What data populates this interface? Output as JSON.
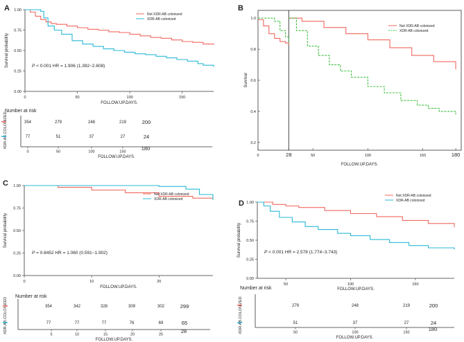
{
  "colors": {
    "not_xdr": "#f0675e",
    "xdr_solid": "#29b9d6",
    "xdr_dashed": "#3fbf3f"
  },
  "chart_data": [
    {
      "panel": "A",
      "type": "line",
      "title": "",
      "xlabel": "FOLLOW.UP.DAYS.",
      "ylabel": "Survival probability",
      "xlim": [
        0,
        180
      ],
      "ylim": [
        0,
        1
      ],
      "xticks": [
        "0",
        "50",
        "100",
        "150"
      ],
      "yticks": [
        "0.00",
        "0.25",
        "0.50",
        "0.75",
        "1.00"
      ],
      "legend": [
        "Not XDR-AB colonized",
        "XDR-AB colonized"
      ],
      "annotation": {
        "p": "P",
        "text": " < 0.001  HR = 1.906 (1.392~2.608)"
      },
      "series": [
        {
          "name": "Not XDR-AB colonized",
          "x": [
            0,
            5,
            10,
            15,
            20,
            25,
            30,
            40,
            50,
            60,
            70,
            80,
            90,
            100,
            110,
            120,
            130,
            140,
            150,
            160,
            170,
            180
          ],
          "y": [
            1.0,
            0.97,
            0.92,
            0.88,
            0.85,
            0.83,
            0.82,
            0.8,
            0.78,
            0.76,
            0.75,
            0.73,
            0.72,
            0.7,
            0.68,
            0.66,
            0.65,
            0.63,
            0.61,
            0.6,
            0.58,
            0.57
          ]
        },
        {
          "name": "XDR-AB colonized",
          "x": [
            0,
            10,
            15,
            18,
            22,
            28,
            35,
            45,
            55,
            65,
            75,
            85,
            95,
            105,
            115,
            125,
            135,
            145,
            155,
            165,
            170,
            180
          ],
          "y": [
            1.0,
            1.0,
            0.98,
            0.9,
            0.8,
            0.75,
            0.7,
            0.62,
            0.58,
            0.55,
            0.52,
            0.5,
            0.48,
            0.46,
            0.45,
            0.43,
            0.41,
            0.39,
            0.37,
            0.34,
            0.32,
            0.3
          ]
        }
      ],
      "risk_table": {
        "title": "Number at risk",
        "ylabel": "XDR.AB.COLONIZED",
        "xlabel": "FOLLOW.UP.DAYS.",
        "xticks": [
          "0",
          "50",
          "100",
          "150",
          "180"
        ],
        "rows": [
          {
            "name": "Not XDR-AB colonized",
            "values": [
              "354",
              "279",
              "248",
              "219",
              "200"
            ]
          },
          {
            "name": "XDR-AB colonized",
            "values": [
              "77",
              "51",
              "37",
              "27",
              "24"
            ]
          }
        ]
      }
    },
    {
      "panel": "B",
      "type": "line",
      "title": "",
      "xlabel": "FOLLOW.UP.DAYS.",
      "ylabel": "Survival",
      "xlim": [
        0,
        185
      ],
      "ylim": [
        0.15,
        1.05
      ],
      "xticks": [
        "0",
        "28",
        "50",
        "100",
        "150",
        "180"
      ],
      "yticks": [
        "0.2",
        "0.4",
        "0.6",
        "0.8",
        "1.0"
      ],
      "landmark_day": 28,
      "legend": [
        "Not XDR-AB colonized",
        "XDR-AB colonized"
      ],
      "series": [
        {
          "name": "Not XDR-AB colonized (before day 28)",
          "x": [
            0,
            5,
            10,
            15,
            20,
            25,
            28
          ],
          "y": [
            0.99,
            0.95,
            0.9,
            0.87,
            0.85,
            0.84,
            0.83
          ]
        },
        {
          "name": "XDR-AB colonized (before day 28)",
          "x": [
            0,
            10,
            15,
            20,
            25,
            28
          ],
          "y": [
            1.0,
            1.0,
            0.98,
            0.92,
            0.88,
            0.84
          ]
        },
        {
          "name": "Not XDR-AB colonized",
          "x": [
            28,
            40,
            60,
            80,
            100,
            120,
            140,
            160,
            180
          ],
          "y": [
            1.0,
            0.98,
            0.94,
            0.9,
            0.86,
            0.81,
            0.76,
            0.72,
            0.67
          ]
        },
        {
          "name": "XDR-AB colonized",
          "x": [
            28,
            35,
            45,
            55,
            65,
            75,
            85,
            100,
            115,
            130,
            145,
            155,
            165,
            180
          ],
          "y": [
            1.0,
            0.92,
            0.82,
            0.76,
            0.7,
            0.66,
            0.62,
            0.56,
            0.52,
            0.47,
            0.44,
            0.42,
            0.4,
            0.38
          ]
        }
      ]
    },
    {
      "panel": "C",
      "type": "line",
      "title": "",
      "xlabel": "FOLLOW.UP.DAYS.",
      "ylabel": "Survival probability",
      "xlim": [
        0,
        28
      ],
      "ylim": [
        0,
        1
      ],
      "xticks": [
        "0",
        "10",
        "20"
      ],
      "yticks": [
        "0.00",
        "0.25",
        "0.50",
        "0.75",
        "1.00"
      ],
      "legend": [
        "Not XDR-AB colonized",
        "XDR-AB colonized"
      ],
      "annotation": {
        "p": "P",
        "text": " = 0.8452     HR = 1.060 (0.591~1.902)"
      },
      "series": [
        {
          "name": "Not XDR-AB colonized",
          "x": [
            0,
            5,
            10,
            15,
            20,
            25,
            28
          ],
          "y": [
            1.0,
            0.98,
            0.95,
            0.92,
            0.88,
            0.86,
            0.84
          ]
        },
        {
          "name": "XDR-AB colonized",
          "x": [
            0,
            5,
            10,
            15,
            20,
            24,
            26,
            28
          ],
          "y": [
            1.0,
            1.0,
            1.0,
            1.0,
            0.99,
            0.96,
            0.9,
            0.84
          ]
        }
      ],
      "risk_table": {
        "title": "Number at risk",
        "ylabel": "XDR.AB.COLONIZED",
        "xlabel": "FOLLOW.UP.DAYS.",
        "xticks": [
          "5",
          "10",
          "15",
          "20",
          "25",
          "28"
        ],
        "rows": [
          {
            "name": "Not XDR-AB colonized",
            "values": [
              "354",
              "342",
              "328",
              "309",
              "302",
              "299"
            ]
          },
          {
            "name": "XDR-AB colonized",
            "values": [
              "77",
              "77",
              "77",
              "76",
              "69",
              "65"
            ]
          }
        ]
      }
    },
    {
      "panel": "D",
      "type": "line",
      "title": "",
      "xlabel": "FOLLOW.UP.DAYS.",
      "ylabel": "Survival probability",
      "xlim": [
        28,
        180
      ],
      "ylim": [
        0,
        1
      ],
      "xticks": [
        "50",
        "100",
        "150"
      ],
      "yticks": [
        "0.00",
        "0.25",
        "0.50",
        "0.75",
        "1.00"
      ],
      "legend": [
        "Not XDR-AB colonized",
        "XDR-AB colonized"
      ],
      "annotation": {
        "p": "P",
        "text": " < 0.001    HR = 2.578 (1.774~3.743)"
      },
      "series": [
        {
          "name": "Not XDR-AB colonized",
          "x": [
            28,
            40,
            50,
            60,
            80,
            100,
            120,
            140,
            160,
            180
          ],
          "y": [
            1.0,
            0.97,
            0.95,
            0.93,
            0.89,
            0.85,
            0.81,
            0.76,
            0.72,
            0.67
          ]
        },
        {
          "name": "XDR-AB colonized",
          "x": [
            28,
            33,
            38,
            45,
            55,
            65,
            75,
            90,
            100,
            115,
            130,
            145,
            160,
            180
          ],
          "y": [
            1.0,
            0.95,
            0.88,
            0.8,
            0.74,
            0.68,
            0.64,
            0.59,
            0.56,
            0.51,
            0.47,
            0.43,
            0.4,
            0.38
          ]
        }
      ],
      "risk_table": {
        "title": "Number at risk",
        "ylabel": "XDR.AB.COLONIZED",
        "xlabel": "FOLLOW.UP.DAYS.",
        "xticks": [
          "50",
          "100",
          "150",
          "180"
        ],
        "rows": [
          {
            "name": "Not XDR-AB colonized",
            "values": [
              "279",
              "248",
              "219",
              "200"
            ]
          },
          {
            "name": "XDR-AB colonized",
            "values": [
              "51",
              "37",
              "27",
              "24"
            ]
          }
        ]
      }
    }
  ]
}
